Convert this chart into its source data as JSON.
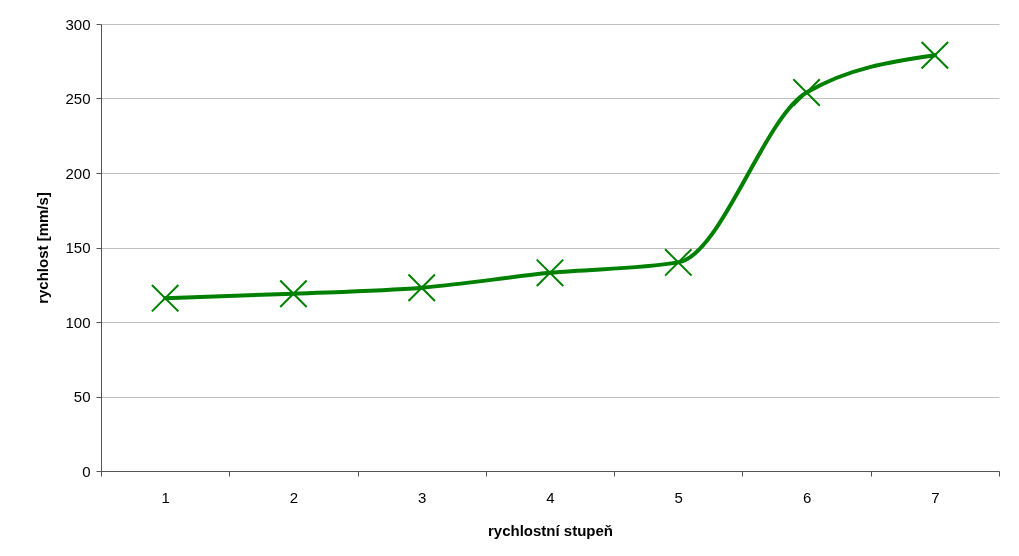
{
  "chart_data": {
    "type": "line",
    "xlabel": "rychlostní stupeň",
    "ylabel": "rychlost [mm/s]",
    "categories": [
      "1",
      "2",
      "3",
      "4",
      "5",
      "6",
      "7"
    ],
    "series": [
      {
        "color": "#008000",
        "values": [
          116,
          119,
          123,
          133,
          140,
          254,
          279
        ]
      }
    ],
    "ylim": [
      0,
      300
    ],
    "yticks": [
      0,
      50,
      100,
      150,
      200,
      250,
      300
    ],
    "grid": "y",
    "marker": "cross",
    "line_style": "solid"
  }
}
